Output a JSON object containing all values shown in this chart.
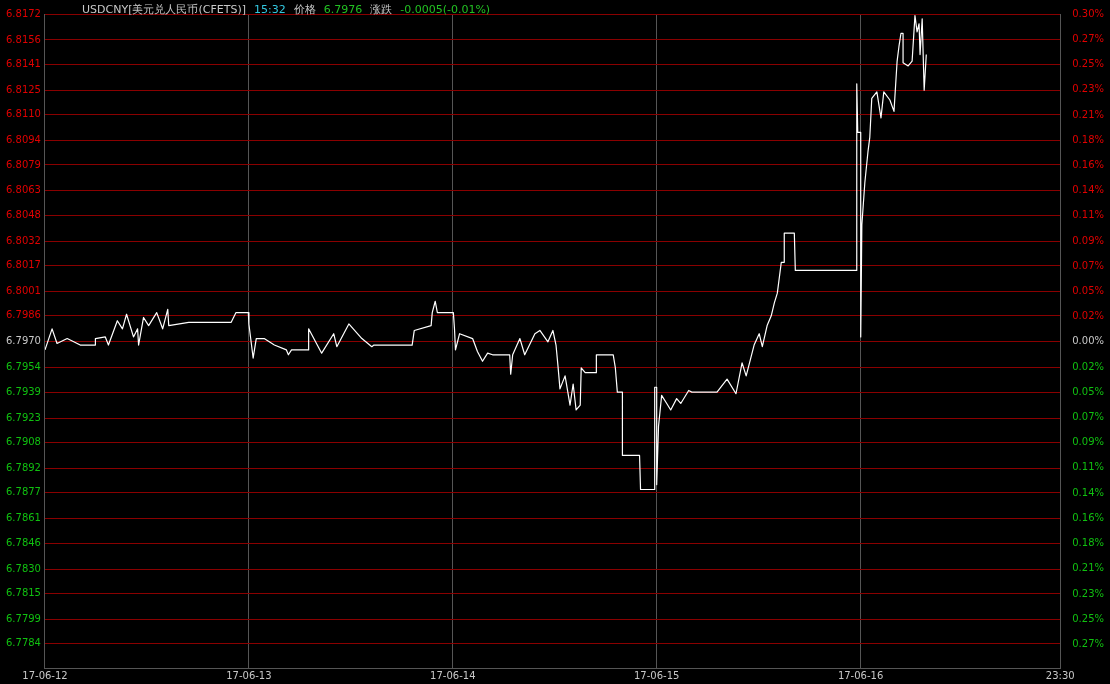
{
  "chart_data": {
    "type": "line",
    "title": "USDCNY[美元兑人民币(CFETS)]",
    "annotations": [
      "15:32",
      "价格",
      "6.7976",
      "涨跌",
      "-0.0005(-0.01%)"
    ],
    "xlim": [
      "--06-12",
      "--06-16T23:30"
    ],
    "xticks": [
      {
        "value": "--06-12",
        "label": "17-06-12"
      },
      {
        "value": "--06-13",
        "label": "17-06-13"
      },
      {
        "value": "--06-14",
        "label": "17-06-14"
      },
      {
        "value": "--06-15",
        "label": "17-06-15"
      },
      {
        "value": "--06-16",
        "label": "17-06-16"
      },
      {
        "value": "--06-16T23:30",
        "label": "23:30"
      }
    ],
    "ylim": [
      6.7769,
      6.8172
    ],
    "yticks": [
      6.8172,
      6.8156,
      6.8141,
      6.8125,
      {
        "value": 6.811,
        "label": "6.8110"
      },
      6.8094,
      6.8079,
      6.8063,
      6.8048,
      6.8032,
      6.8017,
      6.8001,
      6.7986,
      {
        "value": 6.797,
        "label": "6.7970"
      },
      6.7954,
      6.7939,
      6.7923,
      6.7908,
      6.7892,
      6.7877,
      6.7861,
      6.7846,
      {
        "value": 6.783,
        "label": "6.7830"
      },
      6.7815,
      6.7799,
      6.7784
    ],
    "y2lim": [
      -0.2957,
      0.2972
    ],
    "y2ticks": [
      {
        "value": 0.2972,
        "label": "0.30%"
      },
      {
        "value": 0.2743,
        "label": "0.27%"
      },
      {
        "value": 0.2515,
        "label": "0.25%"
      },
      {
        "value": 0.2286,
        "label": "0.23%"
      },
      {
        "value": 0.2057,
        "label": "0.21%"
      },
      {
        "value": 0.1829,
        "label": "0.18%"
      },
      {
        "value": 0.16,
        "label": "0.16%"
      },
      {
        "value": 0.1372,
        "label": "0.14%"
      },
      {
        "value": 0.1143,
        "label": "0.11%"
      },
      {
        "value": 0.0914,
        "label": "0.09%"
      },
      {
        "value": 0.0686,
        "label": "0.07%"
      },
      {
        "value": 0.0457,
        "label": "0.05%"
      },
      {
        "value": 0.0229,
        "label": "0.02%"
      },
      {
        "value": 0,
        "label": "0.00%"
      },
      {
        "value": -0.0229,
        "label": "0.02%"
      },
      {
        "value": -0.0457,
        "label": "0.05%"
      },
      {
        "value": -0.0686,
        "label": "0.07%"
      },
      {
        "value": -0.0914,
        "label": "0.09%"
      },
      {
        "value": -0.1143,
        "label": "0.11%"
      },
      {
        "value": -0.1372,
        "label": "0.14%"
      },
      {
        "value": -0.16,
        "label": "0.16%"
      },
      {
        "value": -0.1829,
        "label": "0.18%"
      },
      {
        "value": -0.2057,
        "label": "0.21%"
      },
      {
        "value": -0.2286,
        "label": "0.23%"
      },
      {
        "value": -0.2515,
        "label": "0.25%"
      },
      {
        "value": -0.2743,
        "label": "0.27%"
      }
    ],
    "grid": true,
    "legend": false,
    "marker": "none",
    "line_style": "solid",
    "series": [
      {
        "color": "#ffffff",
        "x": [
          "--06-12T00:00",
          "--06-12T00:50",
          "--06-12T01:25",
          "--06-12T02:37",
          "--06-12T04:09",
          "--06-12T05:56",
          "--06-12T05:56",
          "--06-12T07:06",
          "--06-12T07:28",
          "--06-12T08:31",
          "--06-12T09:07",
          "--06-12T09:36",
          "--06-12T10:25",
          "--06-12T10:54",
          "--06-12T11:01",
          "--06-12T11:36",
          "--06-12T12:12",
          "--06-12T13:09",
          "--06-12T13:51",
          "--06-12T14:27",
          "--06-12T14:34",
          "--06-12T16:55",
          "--06-12T21:55",
          "--06-12T22:29",
          "--06-12T23:56",
          "--06-13T00:00",
          "--06-13T00:30",
          "--06-13T00:52",
          "--06-13T01:48",
          "--06-13T03:00",
          "--06-13T04:25",
          "--06-13T04:39",
          "--06-13T05:01",
          "--06-13T07:02",
          "--06-13T07:02",
          "--06-13T08:34",
          "--06-13T09:59",
          "--06-13T10:21",
          "--06-13T11:46",
          "--06-13T13:18",
          "--06-13T14:28",
          "--06-13T14:43",
          "--06-13T19:13",
          "--06-13T19:28",
          "--06-13T21:27",
          "--06-13T21:35",
          "--06-13T21:56",
          "--06-13T22:11",
          "--06-13T23:57",
          "--06-14T00:04",
          "--06-14T00:12",
          "--06-14T00:19",
          "--06-14T00:48",
          "--06-14T02:20",
          "--06-14T02:54",
          "--06-14T03:30",
          "--06-14T04:06",
          "--06-14T04:41",
          "--06-14T06:42",
          "--06-14T06:49",
          "--06-14T07:03",
          "--06-14T07:54",
          "--06-14T08:28",
          "--06-14T09:40",
          "--06-14T10:15",
          "--06-14T11:12",
          "--06-14T11:47",
          "--06-14T12:09",
          "--06-14T12:23",
          "--06-14T12:37",
          "--06-14T13:13",
          "--06-14T13:48",
          "--06-14T14:10",
          "--06-14T14:31",
          "--06-14T15:00",
          "--06-14T15:07",
          "--06-14T15:35",
          "--06-14T16:54",
          "--06-14T16:54",
          "--06-14T18:53",
          "--06-14T19:08",
          "--06-14T19:22",
          "--06-14T19:58",
          "--06-14T19:58",
          "--06-14T21:59",
          "--06-14T22:06",
          "--06-14T23:46",
          "--06-14T23:46",
          "--06-15T00:00",
          "--06-15T00:00",
          "--06-15T00:13",
          "--06-15T00:35",
          "--06-15T01:11",
          "--06-15T01:39",
          "--06-15T02:21",
          "--06-15T02:50",
          "--06-15T03:46",
          "--06-15T04:08",
          "--06-15T07:06",
          "--06-15T08:17",
          "--06-15T09:20",
          "--06-15T10:03",
          "--06-15T10:32",
          "--06-15T11:28",
          "--06-15T12:04",
          "--06-15T12:26",
          "--06-15T13:00",
          "--06-15T13:29",
          "--06-15T13:51",
          "--06-15T14:12",
          "--06-15T14:40",
          "--06-15T15:01",
          "--06-15T15:01",
          "--06-15T16:12",
          "--06-15T16:19",
          "--06-15T23:33",
          "--06-15T23:33",
          "--06-15T23:40",
          "--06-16T00:01",
          "--06-16T00:01",
          "--06-16T00:09",
          "--06-16T00:30",
          "--06-16T00:52",
          "--06-16T01:05",
          "--06-16T01:19",
          "--06-16T01:55",
          "--06-16T02:24",
          "--06-16T02:44",
          "--06-16T03:27",
          "--06-16T03:56",
          "--06-16T04:18",
          "--06-16T04:31",
          "--06-16T04:45",
          "--06-16T05:00",
          "--06-16T05:00",
          "--06-16T05:36",
          "--06-16T06:04",
          "--06-16T06:24",
          "--06-16T06:39",
          "--06-16T06:53",
          "--06-16T07:00",
          "--06-16T07:15",
          "--06-16T07:29",
          "--06-16T07:44"
        ],
        "values": [
          6.7965,
          6.7978,
          6.7969,
          6.7972,
          6.7968,
          6.7968,
          6.7972,
          6.7973,
          6.7968,
          6.7983,
          6.7978,
          6.7987,
          6.7973,
          6.7978,
          6.7968,
          6.7985,
          6.798,
          6.7988,
          6.7978,
          6.799,
          6.798,
          6.7982,
          6.7982,
          6.7988,
          6.7988,
          6.7981,
          6.796,
          6.7972,
          6.7972,
          6.7968,
          6.7965,
          6.7962,
          6.7965,
          6.7965,
          6.7978,
          6.7963,
          6.7975,
          6.7967,
          6.7981,
          6.7972,
          6.7967,
          6.7968,
          6.7968,
          6.7977,
          6.798,
          6.7988,
          6.7995,
          6.7988,
          6.7988,
          6.7988,
          6.7978,
          6.7965,
          6.7975,
          6.7972,
          6.7964,
          6.7958,
          6.7963,
          6.7962,
          6.7962,
          6.795,
          6.7962,
          6.7972,
          6.7962,
          6.7975,
          6.7977,
          6.797,
          6.7977,
          6.7968,
          6.7955,
          6.7941,
          6.7949,
          6.7931,
          6.7944,
          6.7928,
          6.7931,
          6.7954,
          6.7951,
          6.7951,
          6.7962,
          6.7962,
          6.7954,
          6.7939,
          6.7939,
          6.79,
          6.79,
          6.7879,
          6.7879,
          6.7942,
          6.7942,
          6.7882,
          6.7918,
          6.7937,
          6.7932,
          6.7928,
          6.7935,
          6.7932,
          6.794,
          6.7939,
          6.7939,
          6.7947,
          6.7938,
          6.7957,
          6.7949,
          6.7968,
          6.7975,
          6.7967,
          6.798,
          6.7986,
          6.7994,
          6.8,
          6.8019,
          6.8019,
          6.8037,
          6.8037,
          6.8014,
          6.8014,
          6.8129,
          6.8099,
          6.8099,
          6.7973,
          6.8042,
          6.8068,
          6.8087,
          6.8096,
          6.812,
          6.8124,
          6.8108,
          6.8124,
          6.8119,
          6.8112,
          6.8143,
          6.8152,
          6.816,
          6.816,
          6.8142,
          6.814,
          6.8143,
          6.8171,
          6.8161,
          6.8166,
          6.8147,
          6.8169,
          6.8125,
          6.8147
        ]
      }
    ]
  }
}
